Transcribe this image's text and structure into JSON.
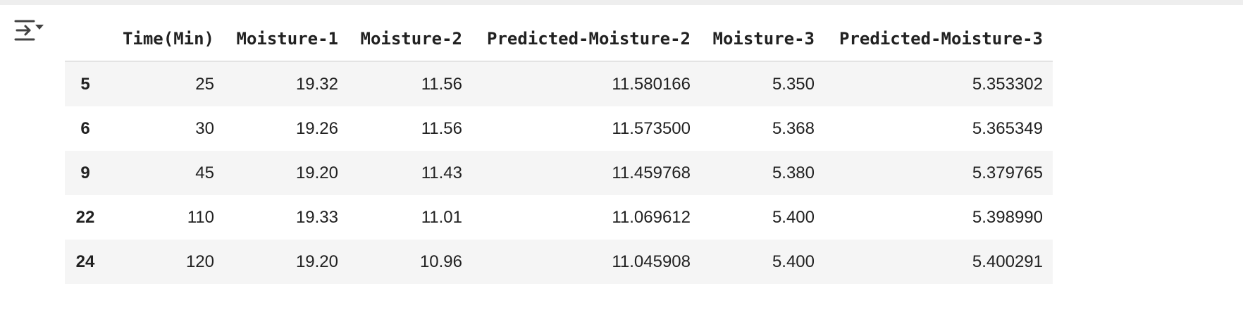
{
  "output_toggle": {
    "icon": "output-collapse-icon"
  },
  "table": {
    "index_header": "",
    "columns": [
      "Time(Min)",
      "Moisture-1",
      "Moisture-2",
      "Predicted-Moisture-2",
      "Moisture-3",
      "Predicted-Moisture-3"
    ],
    "rows": [
      {
        "index": "5",
        "cells": [
          "25",
          "19.32",
          "11.56",
          "11.580166",
          "5.350",
          "5.353302"
        ]
      },
      {
        "index": "6",
        "cells": [
          "30",
          "19.26",
          "11.56",
          "11.573500",
          "5.368",
          "5.365349"
        ]
      },
      {
        "index": "9",
        "cells": [
          "45",
          "19.20",
          "11.43",
          "11.459768",
          "5.380",
          "5.379765"
        ]
      },
      {
        "index": "22",
        "cells": [
          "110",
          "19.33",
          "11.01",
          "11.069612",
          "5.400",
          "5.398990"
        ]
      },
      {
        "index": "24",
        "cells": [
          "120",
          "19.20",
          "10.96",
          "11.045908",
          "5.400",
          "5.400291"
        ]
      }
    ]
  }
}
